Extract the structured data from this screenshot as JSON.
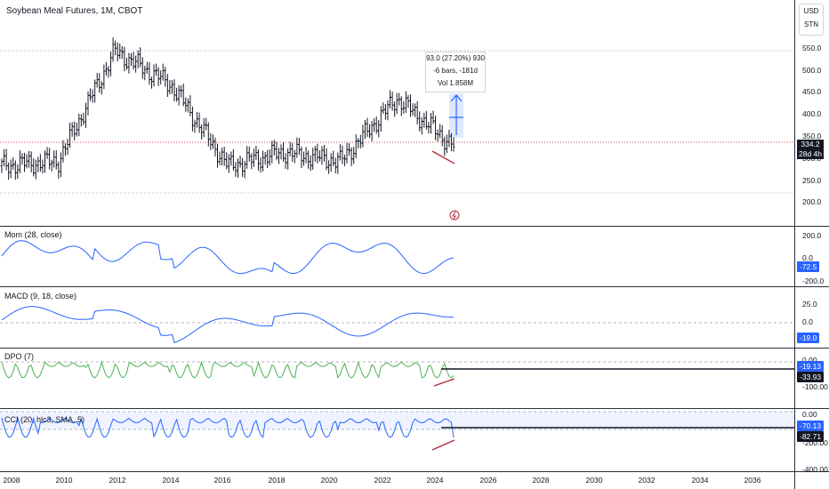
{
  "header": {
    "title": "Soybean Meal Futures, 1M, CBOT"
  },
  "units": {
    "currency": "USD",
    "unit": "STN"
  },
  "price_pane": {
    "y_labels": [
      "550.0",
      "500.0",
      "450.0",
      "400.0",
      "350.0",
      "300.0",
      "250.0",
      "200.0"
    ],
    "last_price": "334.2",
    "countdown": "28d 4h",
    "tooltip": {
      "line1": "93.0 (27.20%) 930",
      "line2": "-6 bars, -181d",
      "line3": "Vol 1.858M"
    }
  },
  "mom_pane": {
    "label": "Mom (28, close)",
    "y_labels": [
      "200.0",
      "0.0",
      "-200.0"
    ],
    "value": "-72.5"
  },
  "macd_pane": {
    "label": "MACD (9, 18, close)",
    "y_labels": [
      "25.0",
      "0.0"
    ],
    "value": "-19.0"
  },
  "dpo_pane": {
    "label": "DPO (7)",
    "y_labels": [
      "0.00",
      "-100.00"
    ],
    "value1": "-19.13",
    "value2": "-33.93"
  },
  "cci_pane": {
    "label": "CCI (20, hlc3, SMA, 5)",
    "y_labels": [
      "0.00",
      "-200.00",
      "-400.00"
    ],
    "value1": "-70.13",
    "value2": "-82.71"
  },
  "x_axis": {
    "labels": [
      "2008",
      "2010",
      "2012",
      "2014",
      "2016",
      "2018",
      "2020",
      "2022",
      "2024",
      "2026",
      "2028",
      "2030",
      "2032",
      "2034",
      "2036"
    ]
  },
  "colors": {
    "line_blue": "#2962ff",
    "line_green": "#4caf50",
    "bear_red": "#b2263a",
    "price_line_red": "#f23645"
  },
  "chart_data": {
    "type": "bar",
    "title": "Soybean Meal Futures, 1M, CBOT",
    "x": [
      "2008",
      "2010",
      "2012",
      "2014",
      "2016",
      "2018",
      "2020",
      "2022",
      "2024"
    ],
    "series": [
      {
        "name": "close",
        "values": [
          290,
          300,
          545,
          470,
          290,
          320,
          300,
          440,
          334.2
        ]
      }
    ],
    "ylim": [
      200,
      560
    ]
  }
}
